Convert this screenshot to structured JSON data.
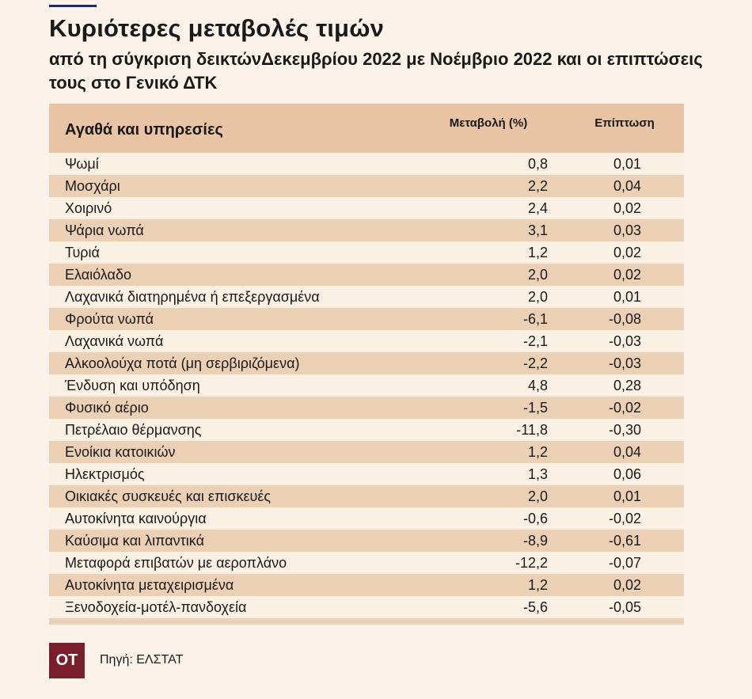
{
  "header": {
    "title": "Κυριότερες μεταβολές τιμών",
    "subtitle": "από τη σύγκριση δεικτώνΔεκεμβρίου 2022 με Νοέμβριο 2022 και οι επιπτώσεις τους στο Γενικό ΔΤΚ"
  },
  "colors": {
    "background": "#fbf3ea",
    "header_row": "#e8c4a5",
    "row_light": "#fbf0e4",
    "row_dark": "#ecd0b6",
    "logo_bg": "#7a1e2c",
    "accent_rule": "#1e2a6b"
  },
  "chart_data": {
    "type": "table",
    "columns": [
      "Αγαθά και υπηρεσίες",
      "Μεταβολή (%)",
      "Επίπτωση"
    ],
    "rows": [
      {
        "name": "Ψωμί",
        "change": "0,8",
        "impact": "0,01"
      },
      {
        "name": "Μοσχάρι",
        "change": "2,2",
        "impact": "0,04"
      },
      {
        "name": "Χοιρινό",
        "change": "2,4",
        "impact": "0,02"
      },
      {
        "name": "Ψάρια νωπά",
        "change": "3,1",
        "impact": "0,03"
      },
      {
        "name": "Τυριά",
        "change": "1,2",
        "impact": "0,02"
      },
      {
        "name": "Ελαιόλαδο",
        "change": "2,0",
        "impact": "0,02"
      },
      {
        "name": "Λαχανικά διατηρημένα ή επεξεργασμένα",
        "change": "2,0",
        "impact": "0,01"
      },
      {
        "name": "Φρούτα νωπά",
        "change": "-6,1",
        "impact": "-0,08"
      },
      {
        "name": "Λαχανικά νωπά",
        "change": "-2,1",
        "impact": "-0,03"
      },
      {
        "name": "Αλκοολούχα ποτά (μη σερβιριζόμενα)",
        "change": "-2,2",
        "impact": "-0,03"
      },
      {
        "name": "Ένδυση και υπόδηση",
        "change": "4,8",
        "impact": "0,28"
      },
      {
        "name": "Φυσικό αέριο",
        "change": "-1,5",
        "impact": "-0,02"
      },
      {
        "name": "Πετρέλαιο θέρμανσης",
        "change": "-11,8",
        "impact": "-0,30"
      },
      {
        "name": "Ενοίκια κατοικιών",
        "change": "1,2",
        "impact": "0,04"
      },
      {
        "name": "Ηλεκτρισμός",
        "change": "1,3",
        "impact": "0,06"
      },
      {
        "name": "Οικιακές συσκευές και επισκευές",
        "change": "2,0",
        "impact": "0,01"
      },
      {
        "name": "Αυτοκίνητα καινούργια",
        "change": "-0,6",
        "impact": "-0,02"
      },
      {
        "name": "Καύσιμα και λιπαντικά",
        "change": "-8,9",
        "impact": "-0,61"
      },
      {
        "name": "Μεταφορά επιβατών με αεροπλάνο",
        "change": "-12,2",
        "impact": "-0,07"
      },
      {
        "name": "Αυτοκίνητα μεταχειρισμένα",
        "change": "1,2",
        "impact": "0,02"
      },
      {
        "name": "Ξενοδοχεία-μοτέλ-πανδοχεία",
        "change": "-5,6",
        "impact": "-0,05"
      }
    ]
  },
  "footer": {
    "logo_text": "ΟΤ",
    "source": "Πηγή: ΕΛΣΤΑΤ"
  }
}
